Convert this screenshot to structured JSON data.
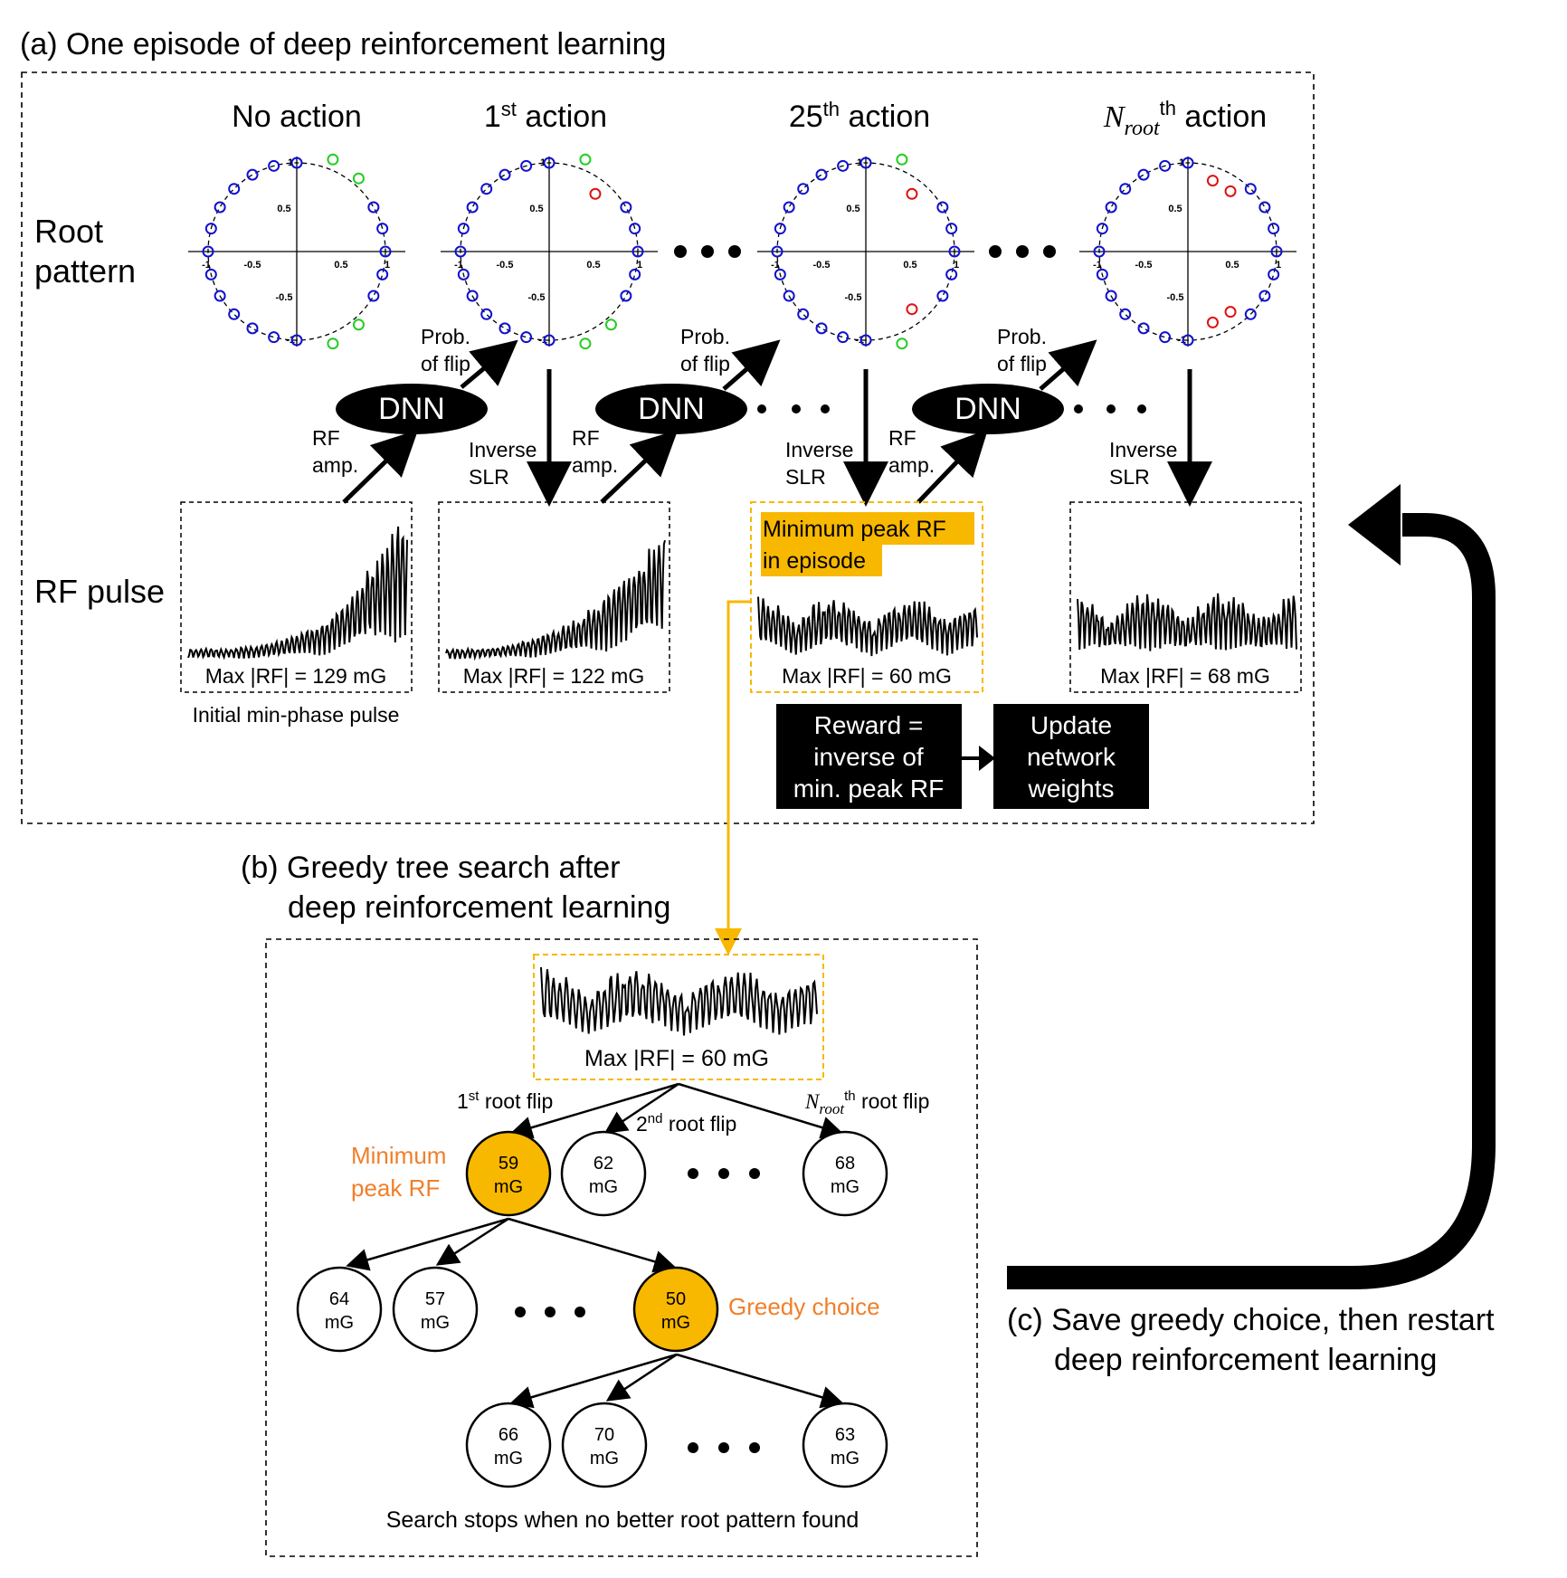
{
  "section_a": {
    "title": "(a) One episode of deep reinforcement learning",
    "columns": [
      {
        "title": "No action",
        "base": "",
        "sup": "",
        "tail": ""
      },
      {
        "title": "",
        "base": "1",
        "sup": "st",
        "tail": " action"
      },
      {
        "title": "",
        "base": "25",
        "sup": "th",
        "tail": " action"
      },
      {
        "title": "",
        "base": "N",
        "sub": "root",
        "sup": "th",
        "tail": " action"
      }
    ],
    "row_labels": {
      "root_line1": "Root",
      "root_line2": "pattern",
      "rf": "RF pulse"
    },
    "axis_ticks": {
      "one": "1",
      "half": "0.5",
      "neg_half": "-0.5",
      "neg_one": "-1"
    },
    "dnn_label": "DNN",
    "prob_line1": "Prob.",
    "prob_line2": "of flip",
    "rf_amp_line1": "RF",
    "rf_amp_line2": "amp.",
    "inverse_line1": "Inverse",
    "inverse_line2": "SLR",
    "pulses": [
      {
        "max": "Max |RF| = 129 mG"
      },
      {
        "max": "Max |RF| = 122 mG"
      },
      {
        "max": "Max |RF| = 60 mG"
      },
      {
        "max": "Max |RF| = 68 mG"
      }
    ],
    "initial_caption": "Initial min-phase pulse",
    "minimum_peak_line1": "Minimum peak RF",
    "minimum_peak_line2": "in episode",
    "reward_lines": [
      "Reward =",
      "inverse of",
      "min. peak RF"
    ],
    "update_lines": [
      "Update",
      "network",
      "weights"
    ]
  },
  "section_b": {
    "title_line1": "(b) Greedy tree search after",
    "title_line2": "deep reinforcement learning",
    "top_max": "Max |RF| = 60 mG",
    "flip_1": {
      "base": "1",
      "sup": "st",
      "tail": " root flip"
    },
    "flip_2": {
      "base": "2",
      "sup": "nd",
      "tail": " root flip"
    },
    "flip_n": {
      "base": "N",
      "sub": "root",
      "sup": "th",
      "tail": " root flip"
    },
    "minimum_line1": "Minimum",
    "minimum_line2": "peak RF",
    "greedy_choice": "Greedy choice",
    "unit": "mG",
    "level1": [
      "59",
      "62",
      "68"
    ],
    "level2": [
      "64",
      "57",
      "50"
    ],
    "level3": [
      "66",
      "70",
      "63"
    ],
    "footer": "Search stops when no better root pattern found"
  },
  "section_c": {
    "line1": "(c) Save greedy choice, then restart",
    "line2": "deep reinforcement learning"
  },
  "colors": {
    "highlight": "#f8b800",
    "orange_text": "#f07f2a",
    "zero_blue": "#1010d0",
    "zero_green": "#22cc22",
    "zero_red": "#e01010"
  },
  "root_patterns": [
    {
      "green": [
        [
          0.42,
          1.07
        ],
        [
          0.72,
          0.85
        ],
        [
          0.72,
          -0.85
        ],
        [
          0.42,
          -1.07
        ]
      ],
      "red": []
    },
    {
      "green": [
        [
          0.42,
          1.07
        ],
        [
          0.72,
          -0.85
        ],
        [
          0.42,
          -1.07
        ]
      ],
      "red": [
        [
          0.52,
          0.65
        ]
      ]
    },
    {
      "green": [
        [
          0.42,
          1.07
        ],
        [
          0.42,
          -1.07
        ]
      ],
      "red": [
        [
          0.52,
          0.65
        ],
        [
          0.52,
          -0.65
        ]
      ]
    },
    {
      "green": [],
      "red": [
        [
          0.28,
          0.8
        ],
        [
          0.48,
          0.68
        ],
        [
          0.28,
          -0.8
        ],
        [
          0.48,
          -0.68
        ]
      ]
    }
  ]
}
